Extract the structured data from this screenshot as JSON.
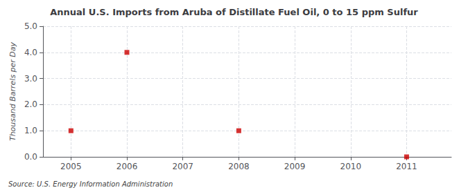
{
  "chart_data": {
    "type": "scatter",
    "title": "Annual U.S. Imports from Aruba of Distillate Fuel Oil, 0 to 15 ppm Sulfur",
    "y_label": "Thousand Barrels per Day",
    "annotations": [
      "Source: U.S. Energy Information Administration"
    ],
    "x": [
      2005,
      2006,
      2008,
      2011
    ],
    "values": [
      1.0,
      4.0,
      1.0,
      0.0
    ],
    "color": "#cc0000",
    "marker": "square",
    "xlim": [
      2004.5,
      2011.8
    ],
    "xticks": [
      2005,
      2006,
      2007,
      2008,
      2009,
      2010,
      2011
    ],
    "ylim": [
      0.0,
      5.0
    ],
    "yticks": [
      {
        "value": 0.0,
        "label": "0.0"
      },
      {
        "value": 1.0,
        "label": "1.0"
      },
      {
        "value": 2.0,
        "label": "2.0"
      },
      {
        "value": 3.0,
        "label": "3.0"
      },
      {
        "value": 4.0,
        "label": "4.0"
      },
      {
        "value": 5.0,
        "label": "5.0"
      }
    ],
    "grid": true
  }
}
